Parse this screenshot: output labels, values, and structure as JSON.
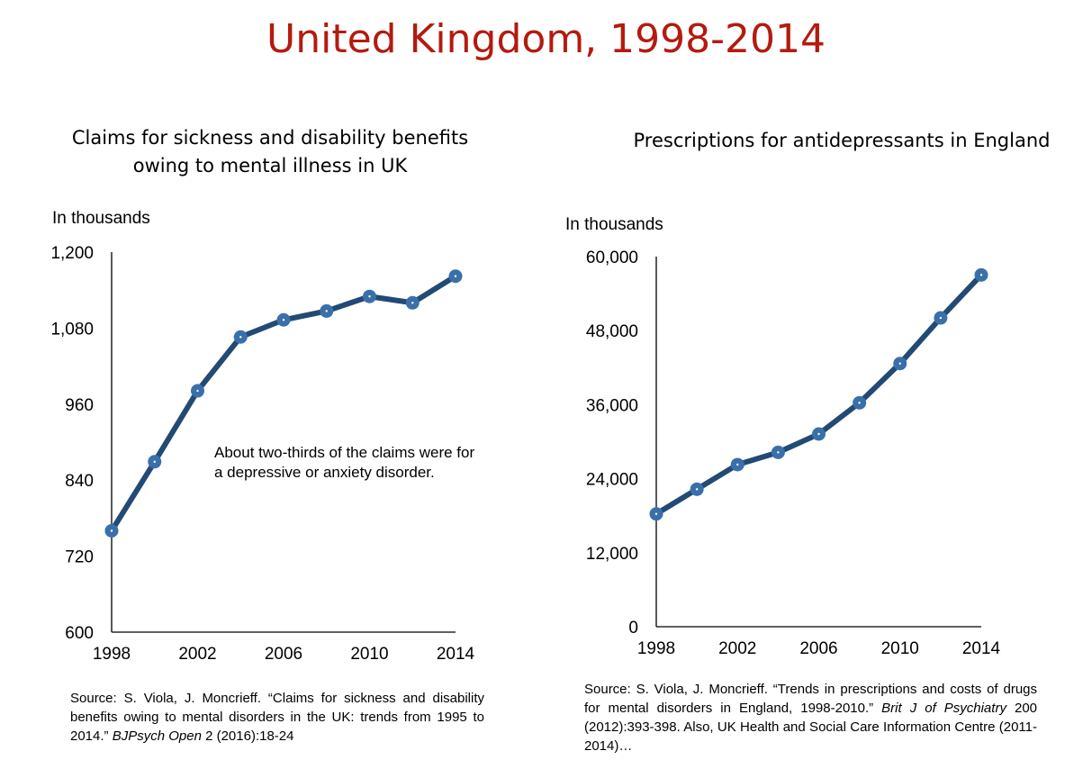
{
  "title": "United Kingdom, 1998-2014",
  "chart_data": [
    {
      "type": "line",
      "title": "Claims for sickness and disability benefits owing to mental illness in UK",
      "ylabel": "In thousands",
      "x": [
        1998,
        2000,
        2002,
        2004,
        2006,
        2008,
        2010,
        2012,
        2014
      ],
      "values": [
        760,
        869,
        981,
        1066,
        1093,
        1107,
        1130,
        1120,
        1162
      ],
      "ylim": [
        600,
        1200
      ],
      "xlim": [
        1998,
        2014
      ],
      "yticks": [
        "600",
        "720",
        "840",
        "960",
        "1,080",
        "1,200"
      ],
      "ytick_values": [
        600,
        720,
        840,
        960,
        1080,
        1200
      ],
      "xticks": [
        "1998",
        "2002",
        "2006",
        "2010",
        "2014"
      ],
      "annotation": "About two-thirds of the claims were for a depressive or anxiety disorder.",
      "grid": false,
      "color": "#2c5282",
      "source_prefix": "Source: S. Viola, J. Moncrieff. “Claims for sickness and disability benefits owing to mental disorders in the UK: trends from 1995 to 2014.” ",
      "source_journal": "BJPsych Open",
      "source_suffix": "  2 (2016):18-24"
    },
    {
      "type": "line",
      "title": "Prescriptions for antidepressants in England",
      "ylabel": "In thousands",
      "x": [
        1998,
        2000,
        2002,
        2004,
        2006,
        2008,
        2010,
        2012,
        2014
      ],
      "values": [
        18290,
        22290,
        26280,
        28270,
        31240,
        36300,
        42670,
        50070,
        57030
      ],
      "ylim": [
        0,
        60000
      ],
      "xlim": [
        1998,
        2014
      ],
      "yticks": [
        "0",
        "12,000",
        "24,000",
        "36,000",
        "48,000",
        "60,000"
      ],
      "ytick_values": [
        0,
        12000,
        24000,
        36000,
        48000,
        60000
      ],
      "xticks": [
        "1998",
        "2002",
        "2006",
        "2010",
        "2014"
      ],
      "grid": false,
      "color": "#2c5282",
      "source_prefix": "Source: S. Viola, J. Moncrieff. “Trends in prescriptions and costs of drugs for mental disorders in England, 1998-2010.” ",
      "source_journal": "Brit J of Psychiatry",
      "source_suffix": " 200 (2012):393-398. Also, UK Health and Social Care Information Centre (2011-2014)…"
    }
  ]
}
